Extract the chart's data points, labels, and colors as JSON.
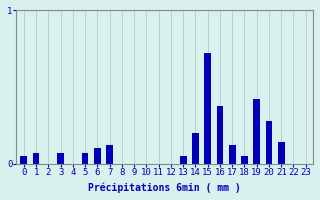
{
  "hours": [
    0,
    1,
    2,
    3,
    4,
    5,
    6,
    7,
    8,
    9,
    10,
    11,
    12,
    13,
    14,
    15,
    16,
    17,
    18,
    19,
    20,
    21,
    22,
    23
  ],
  "values": [
    0.05,
    0.07,
    0.0,
    0.07,
    0.0,
    0.07,
    0.1,
    0.12,
    0.0,
    0.0,
    0.0,
    0.0,
    0.0,
    0.05,
    0.2,
    0.72,
    0.38,
    0.12,
    0.05,
    0.42,
    0.28,
    0.14,
    0.0,
    0.0
  ],
  "bar_color": "#0000bb",
  "background_color": "#d8f0ee",
  "grid_color": "#b8cece",
  "xlabel": "Précipitations 6min ( mm )",
  "ylim": [
    0,
    1.0
  ],
  "xlim": [
    -0.6,
    23.6
  ],
  "ytick_labels": [
    "0",
    "1"
  ],
  "ytick_vals": [
    0,
    1
  ],
  "title_color": "#0000bb",
  "axis_color": "#888888",
  "xlabel_fontsize": 7,
  "tick_fontsize": 6.5,
  "bar_width": 0.55
}
